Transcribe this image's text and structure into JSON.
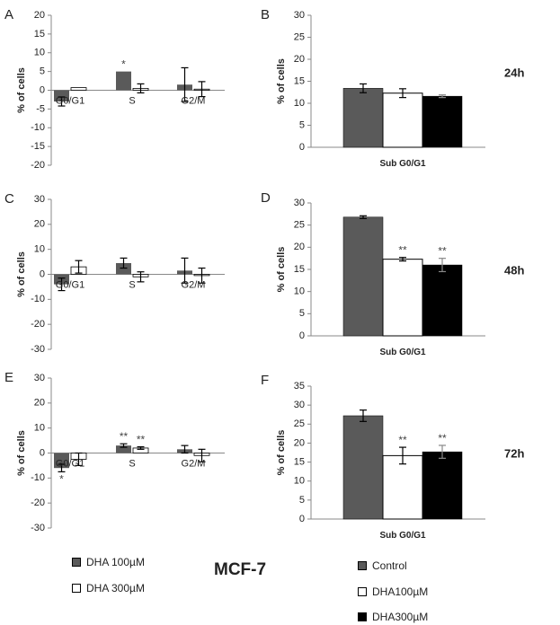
{
  "colors": {
    "dha100": "#5a5a5a",
    "dha300": "#ffffff",
    "control": "#5a5a5a",
    "dha100_b": "#ffffff",
    "dha300_b": "#000000"
  },
  "cell_line": "MCF-7",
  "legends": {
    "left": [
      "DHA 100µM",
      "DHA 300µM"
    ],
    "right": [
      "Control",
      "DHA100µM",
      "DHA300µM"
    ]
  },
  "chart_data": [
    {
      "panel": "A",
      "type": "bar",
      "ylabel": "% of cells",
      "ylim": [
        -20,
        20
      ],
      "yticks": [
        20,
        15,
        10,
        5,
        0,
        -5,
        -10,
        -15,
        -20
      ],
      "categories": [
        "G0/G1",
        "S",
        "G2/M"
      ],
      "series": [
        {
          "name": "DHA 100µM",
          "values": [
            -3,
            5,
            1.5
          ],
          "errors": [
            1.2,
            0,
            4.5
          ],
          "sig": [
            "",
            "*",
            ""
          ]
        },
        {
          "name": "DHA 300µM",
          "values": [
            0.7,
            0.5,
            0.3
          ],
          "errors": [
            0,
            1.2,
            2.0
          ],
          "sig": [
            "",
            "",
            ""
          ]
        }
      ]
    },
    {
      "panel": "B",
      "type": "bar",
      "time": "24h",
      "ylabel": "% of cells",
      "xlabel": "Sub G0/G1",
      "ylim": [
        0,
        30
      ],
      "yticks": [
        30,
        25,
        20,
        15,
        10,
        5,
        0
      ],
      "categories": [
        "Control",
        "DHA100µM",
        "DHA300µM"
      ],
      "values": [
        13.4,
        12.3,
        11.6
      ],
      "errors": [
        1.0,
        1.0,
        0.3
      ],
      "sig": [
        "",
        "",
        ""
      ]
    },
    {
      "panel": "C",
      "type": "bar",
      "ylabel": "% of cells",
      "ylim": [
        -30,
        30
      ],
      "yticks": [
        30,
        20,
        10,
        0,
        -10,
        -20,
        -30
      ],
      "categories": [
        "G0/G1",
        "S",
        "G2/M"
      ],
      "series": [
        {
          "name": "DHA 100µM",
          "values": [
            -4,
            4.5,
            1.5
          ],
          "errors": [
            2.5,
            2.0,
            5.0
          ],
          "sig": [
            "",
            "",
            ""
          ]
        },
        {
          "name": "DHA 300µM",
          "values": [
            3,
            -1,
            -0.5
          ],
          "errors": [
            2.5,
            2.0,
            3.0
          ],
          "sig": [
            "",
            "",
            ""
          ]
        }
      ]
    },
    {
      "panel": "D",
      "type": "bar",
      "time": "48h",
      "ylabel": "% of cells",
      "xlabel": "Sub G0/G1",
      "ylim": [
        0,
        30
      ],
      "yticks": [
        30,
        25,
        20,
        15,
        10,
        5,
        0
      ],
      "categories": [
        "Control",
        "DHA100µM",
        "DHA300µM"
      ],
      "values": [
        26.8,
        17.3,
        16.0
      ],
      "errors": [
        0.3,
        0.4,
        1.5
      ],
      "sig": [
        "",
        "**",
        "**"
      ]
    },
    {
      "panel": "E",
      "type": "bar",
      "ylabel": "% of cells",
      "ylim": [
        -30,
        30
      ],
      "yticks": [
        30,
        20,
        10,
        0,
        -10,
        -20,
        -30
      ],
      "categories": [
        "G0/G1",
        "S",
        "G2/M"
      ],
      "series": [
        {
          "name": "DHA 100µM",
          "values": [
            -6,
            3,
            1.5
          ],
          "errors": [
            1.5,
            0.7,
            1.5
          ],
          "sig": [
            "*",
            "**",
            ""
          ]
        },
        {
          "name": "DHA 300µM",
          "values": [
            -2.5,
            2,
            -1
          ],
          "errors": [
            2.5,
            0.5,
            2.5
          ],
          "sig": [
            "",
            "**",
            ""
          ]
        }
      ]
    },
    {
      "panel": "F",
      "type": "bar",
      "time": "72h",
      "ylabel": "% of cells",
      "xlabel": "Sub G0/G1",
      "ylim": [
        0,
        35
      ],
      "yticks": [
        35,
        30,
        25,
        20,
        15,
        10,
        5,
        0
      ],
      "categories": [
        "Control",
        "DHA100µM",
        "DHA300µM"
      ],
      "values": [
        27.2,
        16.7,
        17.7
      ],
      "errors": [
        1.5,
        2.2,
        1.7
      ],
      "sig": [
        "",
        "**",
        "**"
      ]
    }
  ]
}
